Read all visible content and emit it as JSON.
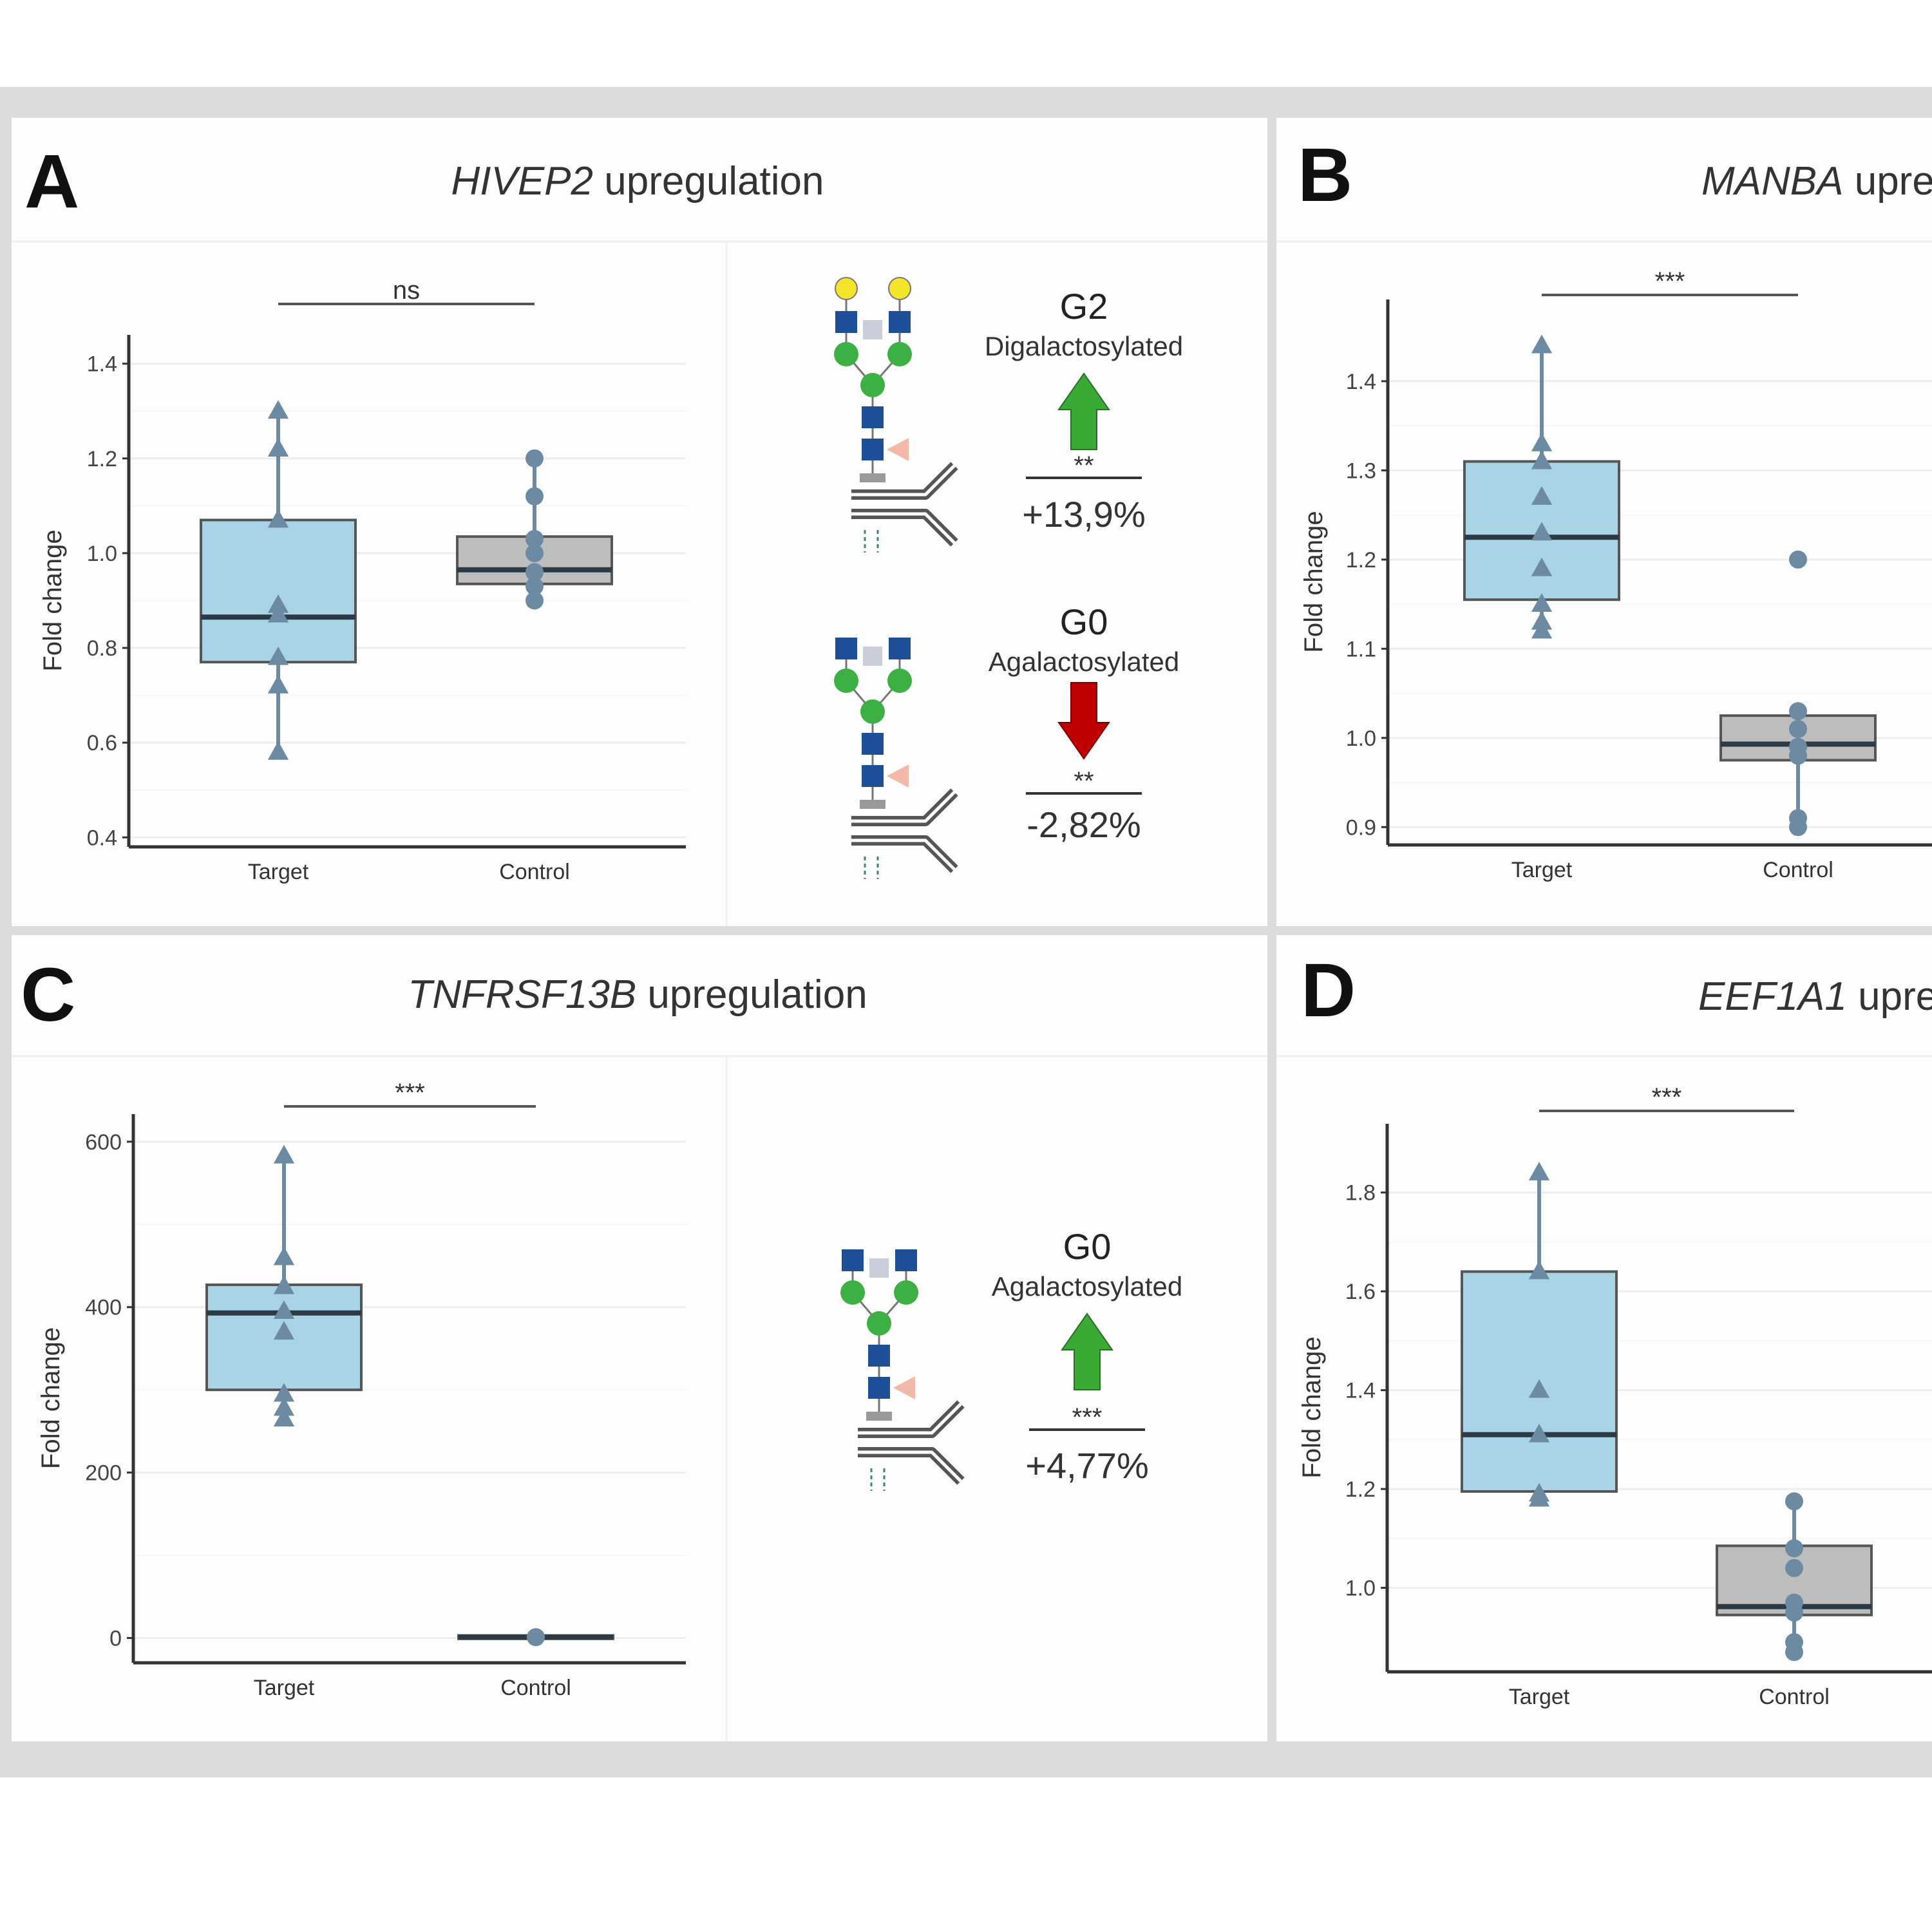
{
  "chart_data": [
    {
      "panel": "A",
      "type": "box",
      "title_gene": "HIVEP2",
      "title_rest": " upregulation",
      "ylabel": "Fold change",
      "ylim": [
        0.38,
        1.42
      ],
      "yticks": [
        0.4,
        0.6,
        0.8,
        1.0,
        1.2,
        1.4
      ],
      "ytick_labels": [
        "0.4",
        "0.6",
        "0.8",
        "1.0",
        "1.2",
        "1.4"
      ],
      "categories": [
        "Target",
        "Control"
      ],
      "significance": "ns",
      "boxes": [
        {
          "name": "Target",
          "q1": 0.77,
          "median": 0.865,
          "q3": 1.07,
          "whisker_low": 0.58,
          "whisker_high": 1.3,
          "points": [
            0.58,
            0.72,
            0.78,
            0.87,
            0.89,
            1.07,
            1.22,
            1.3
          ],
          "marker": "triangle",
          "fill": "#a9d4e6"
        },
        {
          "name": "Control",
          "q1": 0.935,
          "median": 0.965,
          "q3": 1.035,
          "whisker_low": 0.9,
          "whisker_high": 1.2,
          "points": [
            0.9,
            0.93,
            0.96,
            1.0,
            1.03,
            1.12,
            1.2
          ],
          "marker": "circle",
          "fill": "#bdbdbd"
        }
      ]
    },
    {
      "panel": "B",
      "type": "box",
      "title_gene": "MANBA",
      "title_rest": " upre",
      "ylabel": "Fold change",
      "ylim": [
        0.88,
        1.47
      ],
      "yticks": [
        0.9,
        1.0,
        1.1,
        1.2,
        1.3,
        1.4
      ],
      "ytick_labels": [
        "0.9",
        "1.0",
        "1.1",
        "1.2",
        "1.3",
        "1.4"
      ],
      "categories": [
        "Target",
        "Control"
      ],
      "significance": "***",
      "boxes": [
        {
          "name": "Target",
          "q1": 1.155,
          "median": 1.225,
          "q3": 1.31,
          "whisker_low": 1.12,
          "whisker_high": 1.44,
          "points": [
            1.12,
            1.13,
            1.15,
            1.19,
            1.23,
            1.27,
            1.31,
            1.33,
            1.44
          ],
          "marker": "triangle",
          "fill": "#a9d4e6"
        },
        {
          "name": "Control",
          "q1": 0.975,
          "median": 0.993,
          "q3": 1.025,
          "whisker_low": 0.905,
          "whisker_high": 1.035,
          "points": [
            0.9,
            0.91,
            0.98,
            0.99,
            1.01,
            1.03,
            1.2
          ],
          "marker": "circle",
          "fill": "#bdbdbd"
        }
      ]
    },
    {
      "panel": "C",
      "type": "box",
      "title_gene": "TNFRSF13B",
      "title_rest": " upregulation",
      "ylabel": "Fold change",
      "ylim": [
        -30,
        610
      ],
      "yticks": [
        0,
        200,
        400,
        600
      ],
      "ytick_labels": [
        "0",
        "200",
        "400",
        "600"
      ],
      "categories": [
        "Target",
        "Control"
      ],
      "significance": "***",
      "boxes": [
        {
          "name": "Target",
          "q1": 300,
          "median": 393,
          "q3": 427,
          "whisker_low": 265,
          "whisker_high": 583,
          "points": [
            265,
            278,
            295,
            370,
            395,
            425,
            460,
            583
          ],
          "marker": "triangle",
          "fill": "#a9d4e6"
        },
        {
          "name": "Control",
          "q1": -1,
          "median": 1,
          "q3": 3,
          "whisker_low": -2,
          "whisker_high": 4,
          "points": [
            1
          ],
          "marker": "circle",
          "fill": "#bdbdbd"
        }
      ]
    },
    {
      "panel": "D",
      "type": "box",
      "title_gene": "EEF1A1",
      "title_rest": " upre",
      "ylabel": "Fold change",
      "ylim": [
        0.83,
        1.9
      ],
      "yticks": [
        1.0,
        1.2,
        1.4,
        1.6,
        1.8
      ],
      "ytick_labels": [
        "1.0",
        "1.2",
        "1.4",
        "1.6",
        "1.8"
      ],
      "categories": [
        "Target",
        "Control"
      ],
      "significance": "***",
      "boxes": [
        {
          "name": "Target",
          "q1": 1.195,
          "median": 1.31,
          "q3": 1.64,
          "whisker_low": 1.18,
          "whisker_high": 1.84,
          "points": [
            1.18,
            1.19,
            1.31,
            1.4,
            1.64,
            1.84
          ],
          "marker": "triangle",
          "fill": "#a9d4e6"
        },
        {
          "name": "Control",
          "q1": 0.945,
          "median": 0.962,
          "q3": 1.085,
          "whisker_low": 0.87,
          "whisker_high": 1.175,
          "points": [
            0.87,
            0.89,
            0.95,
            0.97,
            1.04,
            1.08,
            1.175
          ],
          "marker": "circle",
          "fill": "#bdbdbd"
        }
      ]
    }
  ],
  "glycans": [
    {
      "name": "G2",
      "subtitle": "Digalactosylated",
      "direction": "up",
      "significance": "**",
      "change": "+13,9%",
      "galactose": true
    },
    {
      "name": "G0",
      "subtitle": "Agalactosylated",
      "direction": "down",
      "significance": "**",
      "change": "-2,82%",
      "galactose": false
    },
    {
      "name": "G0",
      "subtitle": "Agalactosylated",
      "direction": "up",
      "significance": "***",
      "change": "+4,77%",
      "galactose": false
    }
  ],
  "colors": {
    "target_fill": "#a9d4e6",
    "control_fill": "#bdbdbd",
    "marker": "#6d8aa3",
    "arrow_up": "#3aaa35",
    "arrow_down": "#c00000",
    "galactose": "#f4e52b",
    "glcnac": "#1f4e99",
    "mannose": "#3cb043",
    "fucose": "#f2b8a8",
    "bisecting": "#c9ccd9",
    "frame": "#dcdcdc"
  }
}
